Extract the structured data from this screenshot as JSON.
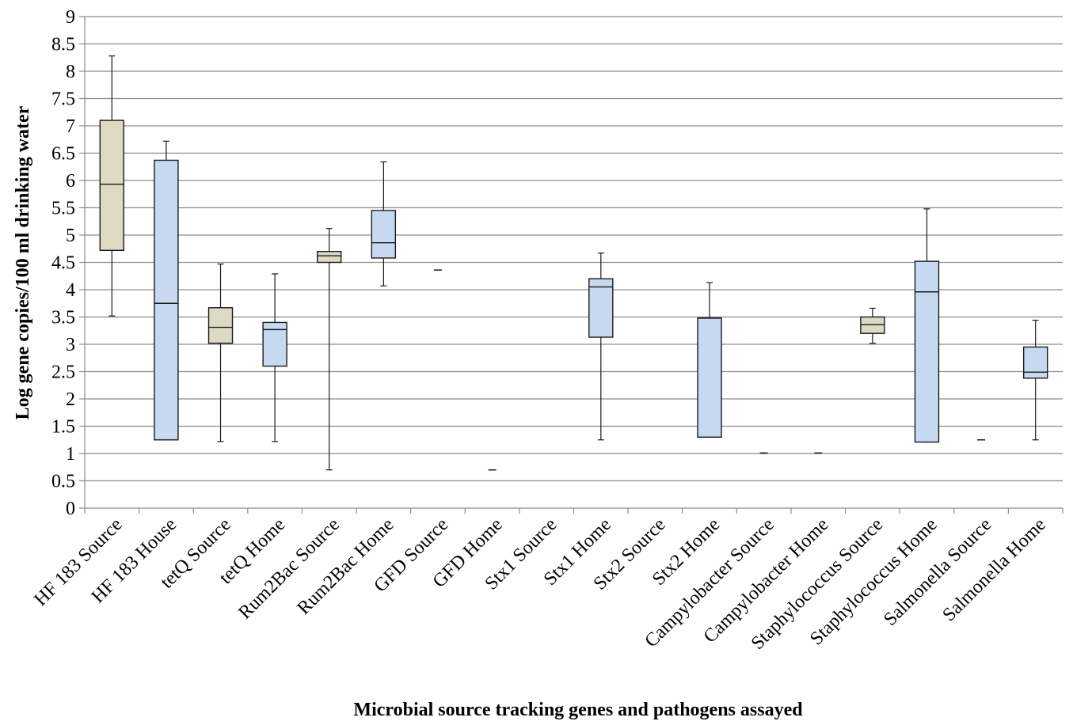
{
  "chart_data": {
    "type": "boxplot",
    "title": "",
    "xlabel": "Microbial source tracking genes and pathogens assayed",
    "ylabel": "Log gene copies/100 ml drinking water",
    "ylim": [
      0,
      9
    ],
    "yticks": [
      "0",
      "0.5",
      "1",
      "1.5",
      "2",
      "2.5",
      "3",
      "3.5",
      "4",
      "4.5",
      "5",
      "5.5",
      "6",
      "6.5",
      "7",
      "7.5",
      "8",
      "8.5",
      "9"
    ],
    "ytick_values": [
      0,
      0.5,
      1,
      1.5,
      2,
      2.5,
      3,
      3.5,
      4,
      4.5,
      5,
      5.5,
      6,
      6.5,
      7,
      7.5,
      8,
      8.5,
      9
    ],
    "grid": "horizontal",
    "colors": {
      "source": "#ded9c3",
      "home": "#c6d9f1",
      "stroke": "#1a1a1a",
      "grid": "#8c8c8c"
    },
    "categories": [
      "HF 183 Source",
      "HF 183 House",
      "tetQ Source",
      "tetQ Home",
      "Rum2Bac Source",
      "Rum2Bac Home",
      "GFD Source",
      "GFD Home",
      "Stx1 Source",
      "Stx1 Home",
      "Stx2 Source",
      "Stx2 Home",
      "Campylobacter Source",
      "Campylobacter Home",
      "Staphylococcus Source",
      "Staphylococcus Home",
      "Salmonella Source",
      "Salmonella Home"
    ],
    "boxes": [
      {
        "kind": "source",
        "min": 3.52,
        "q1": 4.72,
        "median": 5.93,
        "q3": 7.1,
        "max": 8.28
      },
      {
        "kind": "home",
        "min": 1.25,
        "q1": 1.25,
        "median": 3.75,
        "q3": 6.37,
        "max": 6.72
      },
      {
        "kind": "source",
        "min": 1.22,
        "q1": 3.02,
        "median": 3.31,
        "q3": 3.67,
        "max": 4.47
      },
      {
        "kind": "home",
        "min": 1.22,
        "q1": 2.6,
        "median": 3.27,
        "q3": 3.4,
        "max": 4.29
      },
      {
        "kind": "source",
        "min": 0.7,
        "q1": 4.5,
        "median": 4.62,
        "q3": 4.7,
        "max": 5.12
      },
      {
        "kind": "home",
        "min": 4.07,
        "q1": 4.58,
        "median": 4.86,
        "q3": 5.45,
        "max": 6.34
      },
      {
        "kind": "source",
        "single": 4.36
      },
      {
        "kind": "home",
        "single": 0.7
      },
      null,
      {
        "kind": "home",
        "min": 1.25,
        "q1": 3.13,
        "median": 4.05,
        "q3": 4.2,
        "max": 4.67
      },
      null,
      {
        "kind": "home",
        "min": 1.3,
        "q1": 1.3,
        "median": 3.48,
        "q3": 3.48,
        "max": 4.13
      },
      {
        "kind": "source",
        "single": 1.01
      },
      {
        "kind": "home",
        "single": 1.01
      },
      {
        "kind": "source",
        "min": 3.02,
        "q1": 3.2,
        "median": 3.36,
        "q3": 3.5,
        "max": 3.66
      },
      {
        "kind": "home",
        "min": 1.21,
        "q1": 1.21,
        "median": 3.96,
        "q3": 4.52,
        "max": 5.48
      },
      {
        "kind": "source",
        "single": 1.25
      },
      {
        "kind": "home",
        "min": 1.25,
        "q1": 2.38,
        "median": 2.49,
        "q3": 2.95,
        "max": 3.44
      }
    ]
  }
}
